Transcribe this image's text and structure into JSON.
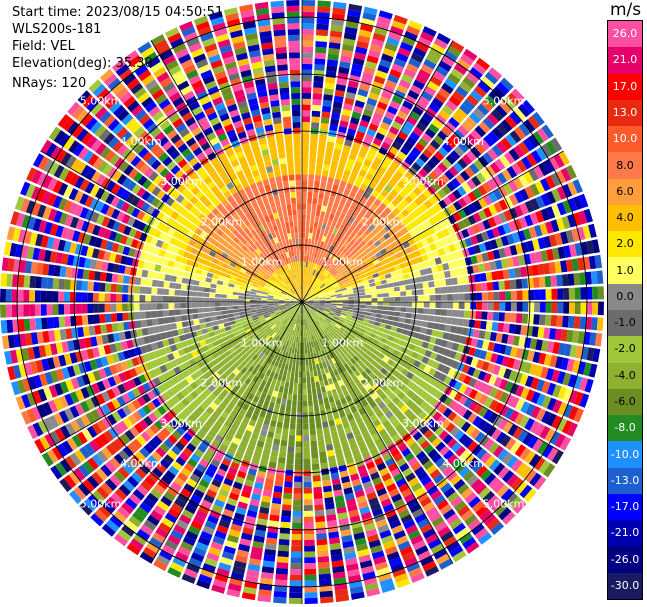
{
  "info": {
    "start_time": "Start time: 2023/08/15 04:50:51",
    "instrument": "WLS200s-181",
    "field": "Field: VEL",
    "elevation": "Elevation(deg): 35.30",
    "nrays": "NRays: 120"
  },
  "colorbar": {
    "unit": "m/s",
    "ticks": [
      "26.0",
      "21.0",
      "17.0",
      "13.0",
      "10.0",
      "8.0",
      "6.0",
      "4.0",
      "2.0",
      "1.0",
      "0.0",
      "-1.0",
      "-2.0",
      "-4.0",
      "-6.0",
      "-8.0",
      "-10.0",
      "-13.0",
      "-17.0",
      "-21.0",
      "-26.0",
      "-30.0"
    ],
    "colors": [
      "#ff4fa3",
      "#e8006a",
      "#ff0000",
      "#e82a10",
      "#ff5a2a",
      "#ff7a4a",
      "#ff9e3a",
      "#ffbf00",
      "#ffe800",
      "#ffff60",
      "#8a8a8a",
      "#6c6c6c",
      "#a0c83a",
      "#8fb030",
      "#6b8e23",
      "#228b22",
      "#1e90ff",
      "#1e5fd0",
      "#0000ff",
      "#0000b0",
      "#000080",
      "#1a1a60"
    ]
  },
  "chart_data": {
    "type": "heatmap",
    "projection": "polar PPI",
    "field": "VEL",
    "nrays": 120,
    "range_rings_km": [
      1.0,
      2.0,
      3.0,
      4.0,
      5.0
    ],
    "ring_labels": [
      "1.00km",
      "2.00km",
      "3.00km",
      "4.00km",
      "5.00km"
    ],
    "valid_range_km": 3.0,
    "max_range_km": 5.3,
    "approx_velocity_by_azimuth": [
      {
        "azimuth_deg": 0,
        "vel_ms": 4.0
      },
      {
        "azimuth_deg": 45,
        "vel_ms": 3.0
      },
      {
        "azimuth_deg": 90,
        "vel_ms": 0.0
      },
      {
        "azimuth_deg": 135,
        "vel_ms": -3.0
      },
      {
        "azimuth_deg": 180,
        "vel_ms": -5.0
      },
      {
        "azimuth_deg": 225,
        "vel_ms": -3.0
      },
      {
        "azimuth_deg": 270,
        "vel_ms": 0.0
      },
      {
        "azimuth_deg": 315,
        "vel_ms": 3.0
      }
    ],
    "core_velocity_near_ms": {
      "north": 10.0,
      "south": -6.0
    }
  }
}
